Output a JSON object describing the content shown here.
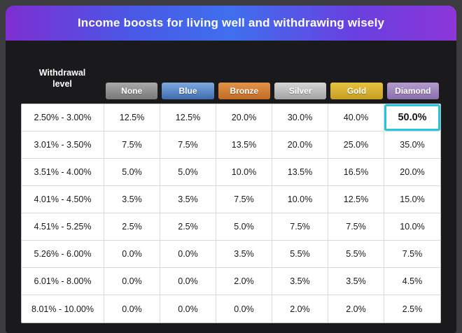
{
  "header": {
    "title": "Income boosts for living well and withdrawing wisely"
  },
  "table": {
    "corner_label": "Withdrawal level",
    "tiers": [
      {
        "label": "None",
        "color_top": "#a9a9a9",
        "color_bottom": "#797979"
      },
      {
        "label": "Blue",
        "color_top": "#7fa9dd",
        "color_bottom": "#3e6cb0"
      },
      {
        "label": "Bronze",
        "color_top": "#e2944a",
        "color_bottom": "#c26b26"
      },
      {
        "label": "Silver",
        "color_top": "#d6d6d6",
        "color_bottom": "#a3a3a3"
      },
      {
        "label": "Gold",
        "color_top": "#e7c23f",
        "color_bottom": "#c79e24"
      },
      {
        "label": "Diamond",
        "color_top": "#b59ccb",
        "color_bottom": "#8a6fae"
      }
    ],
    "highlight": {
      "row": 0,
      "col": 5,
      "border_color": "#28c4da"
    }
  },
  "chart_data": {
    "type": "table",
    "title": "Income boosts for living well and withdrawing wisely",
    "row_header": "Withdrawal level",
    "columns": [
      "None",
      "Blue",
      "Bronze",
      "Silver",
      "Gold",
      "Diamond"
    ],
    "rows": [
      {
        "range": "2.50% - 3.00%",
        "values": [
          "12.5%",
          "12.5%",
          "20.0%",
          "30.0%",
          "40.0%",
          "50.0%"
        ]
      },
      {
        "range": "3.01% - 3.50%",
        "values": [
          "7.5%",
          "7.5%",
          "13.5%",
          "20.0%",
          "25.0%",
          "35.0%"
        ]
      },
      {
        "range": "3.51% - 4.00%",
        "values": [
          "5.0%",
          "5.0%",
          "10.0%",
          "13.5%",
          "16.5%",
          "20.0%"
        ]
      },
      {
        "range": "4.01% - 4.50%",
        "values": [
          "3.5%",
          "3.5%",
          "7.5%",
          "10.0%",
          "12.5%",
          "15.0%"
        ]
      },
      {
        "range": "4.51% - 5.25%",
        "values": [
          "2.5%",
          "2.5%",
          "5.0%",
          "7.5%",
          "7.5%",
          "10.0%"
        ]
      },
      {
        "range": "5.26% - 6.00%",
        "values": [
          "0.0%",
          "0.0%",
          "3.5%",
          "5.5%",
          "5.5%",
          "7.5%"
        ]
      },
      {
        "range": "6.01% - 8.00%",
        "values": [
          "0.0%",
          "0.0%",
          "2.0%",
          "3.5%",
          "3.5%",
          "4.5%"
        ]
      },
      {
        "range": "8.01% - 10.00%",
        "values": [
          "0.0%",
          "0.0%",
          "0.0%",
          "2.0%",
          "2.0%",
          "2.5%"
        ]
      }
    ],
    "highlighted_cell": {
      "range": "2.50% - 3.00%",
      "column": "Diamond",
      "value": "50.0%"
    }
  }
}
